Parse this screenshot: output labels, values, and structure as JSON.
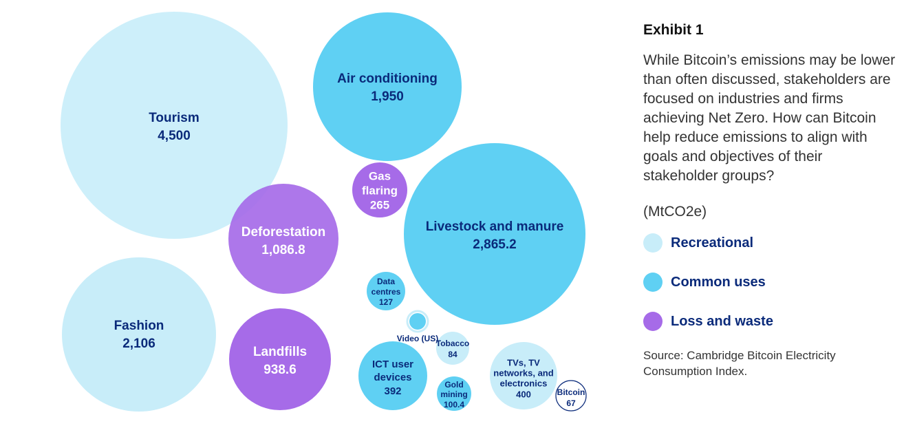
{
  "header": {
    "exhibit": "Exhibit 1",
    "description": "While Bitcoin’s emissions may be lower than often discussed, stakeholders are focused on industries and firms achieving Net Zero. How can Bitcoin help reduce emissions to align with goals and objectives of their stakeholder groups?",
    "unit": "(MtCO2e)",
    "source": "Source: Cambridge Bitcoin Electricity Consumption Index."
  },
  "legend": [
    {
      "label": "Recreational",
      "color": "#c8edf9"
    },
    {
      "label": "Common uses",
      "color": "#5fd0f3"
    },
    {
      "label": "Loss and waste",
      "color": "#a66be8"
    }
  ],
  "chart_data": {
    "type": "bubble",
    "unit": "MtCO2e",
    "points": [
      {
        "name": "Tourism",
        "value": 4500,
        "value_label": "4,500",
        "category": "Recreational"
      },
      {
        "name": "Air conditioning",
        "value": 1950,
        "value_label": "1,950",
        "category": "Common uses"
      },
      {
        "name": "Livestock and manure",
        "value": 2865.2,
        "value_label": "2,865.2",
        "category": "Common uses"
      },
      {
        "name": "Gas flaring",
        "value": 265,
        "value_label": "265",
        "category": "Loss and waste"
      },
      {
        "name": "Deforestation",
        "value": 1086.8,
        "value_label": "1,086.8",
        "category": "Loss and waste"
      },
      {
        "name": "Fashion",
        "value": 2106,
        "value_label": "2,106",
        "category": "Recreational"
      },
      {
        "name": "Landfills",
        "value": 938.6,
        "value_label": "938.6",
        "category": "Loss and waste"
      },
      {
        "name": "Data centres",
        "value": 127,
        "value_label": "127",
        "category": "Common uses"
      },
      {
        "name": "Video (US)",
        "value_label": "",
        "category": "Common uses"
      },
      {
        "name": "Tobacco",
        "value": 84,
        "value_label": "84",
        "category": "Recreational"
      },
      {
        "name": "ICT user devices",
        "value": 392,
        "value_label": "392",
        "category": "Common uses"
      },
      {
        "name": "Gold mining",
        "value": 100.4,
        "value_label": "100.4",
        "category": "Common uses"
      },
      {
        "name": "TVs, TV networks, and electronics",
        "value": 400,
        "value_label": "400",
        "category": "Recreational"
      },
      {
        "name": "Bitcoin",
        "value": 67,
        "value_label": "67"
      }
    ]
  }
}
